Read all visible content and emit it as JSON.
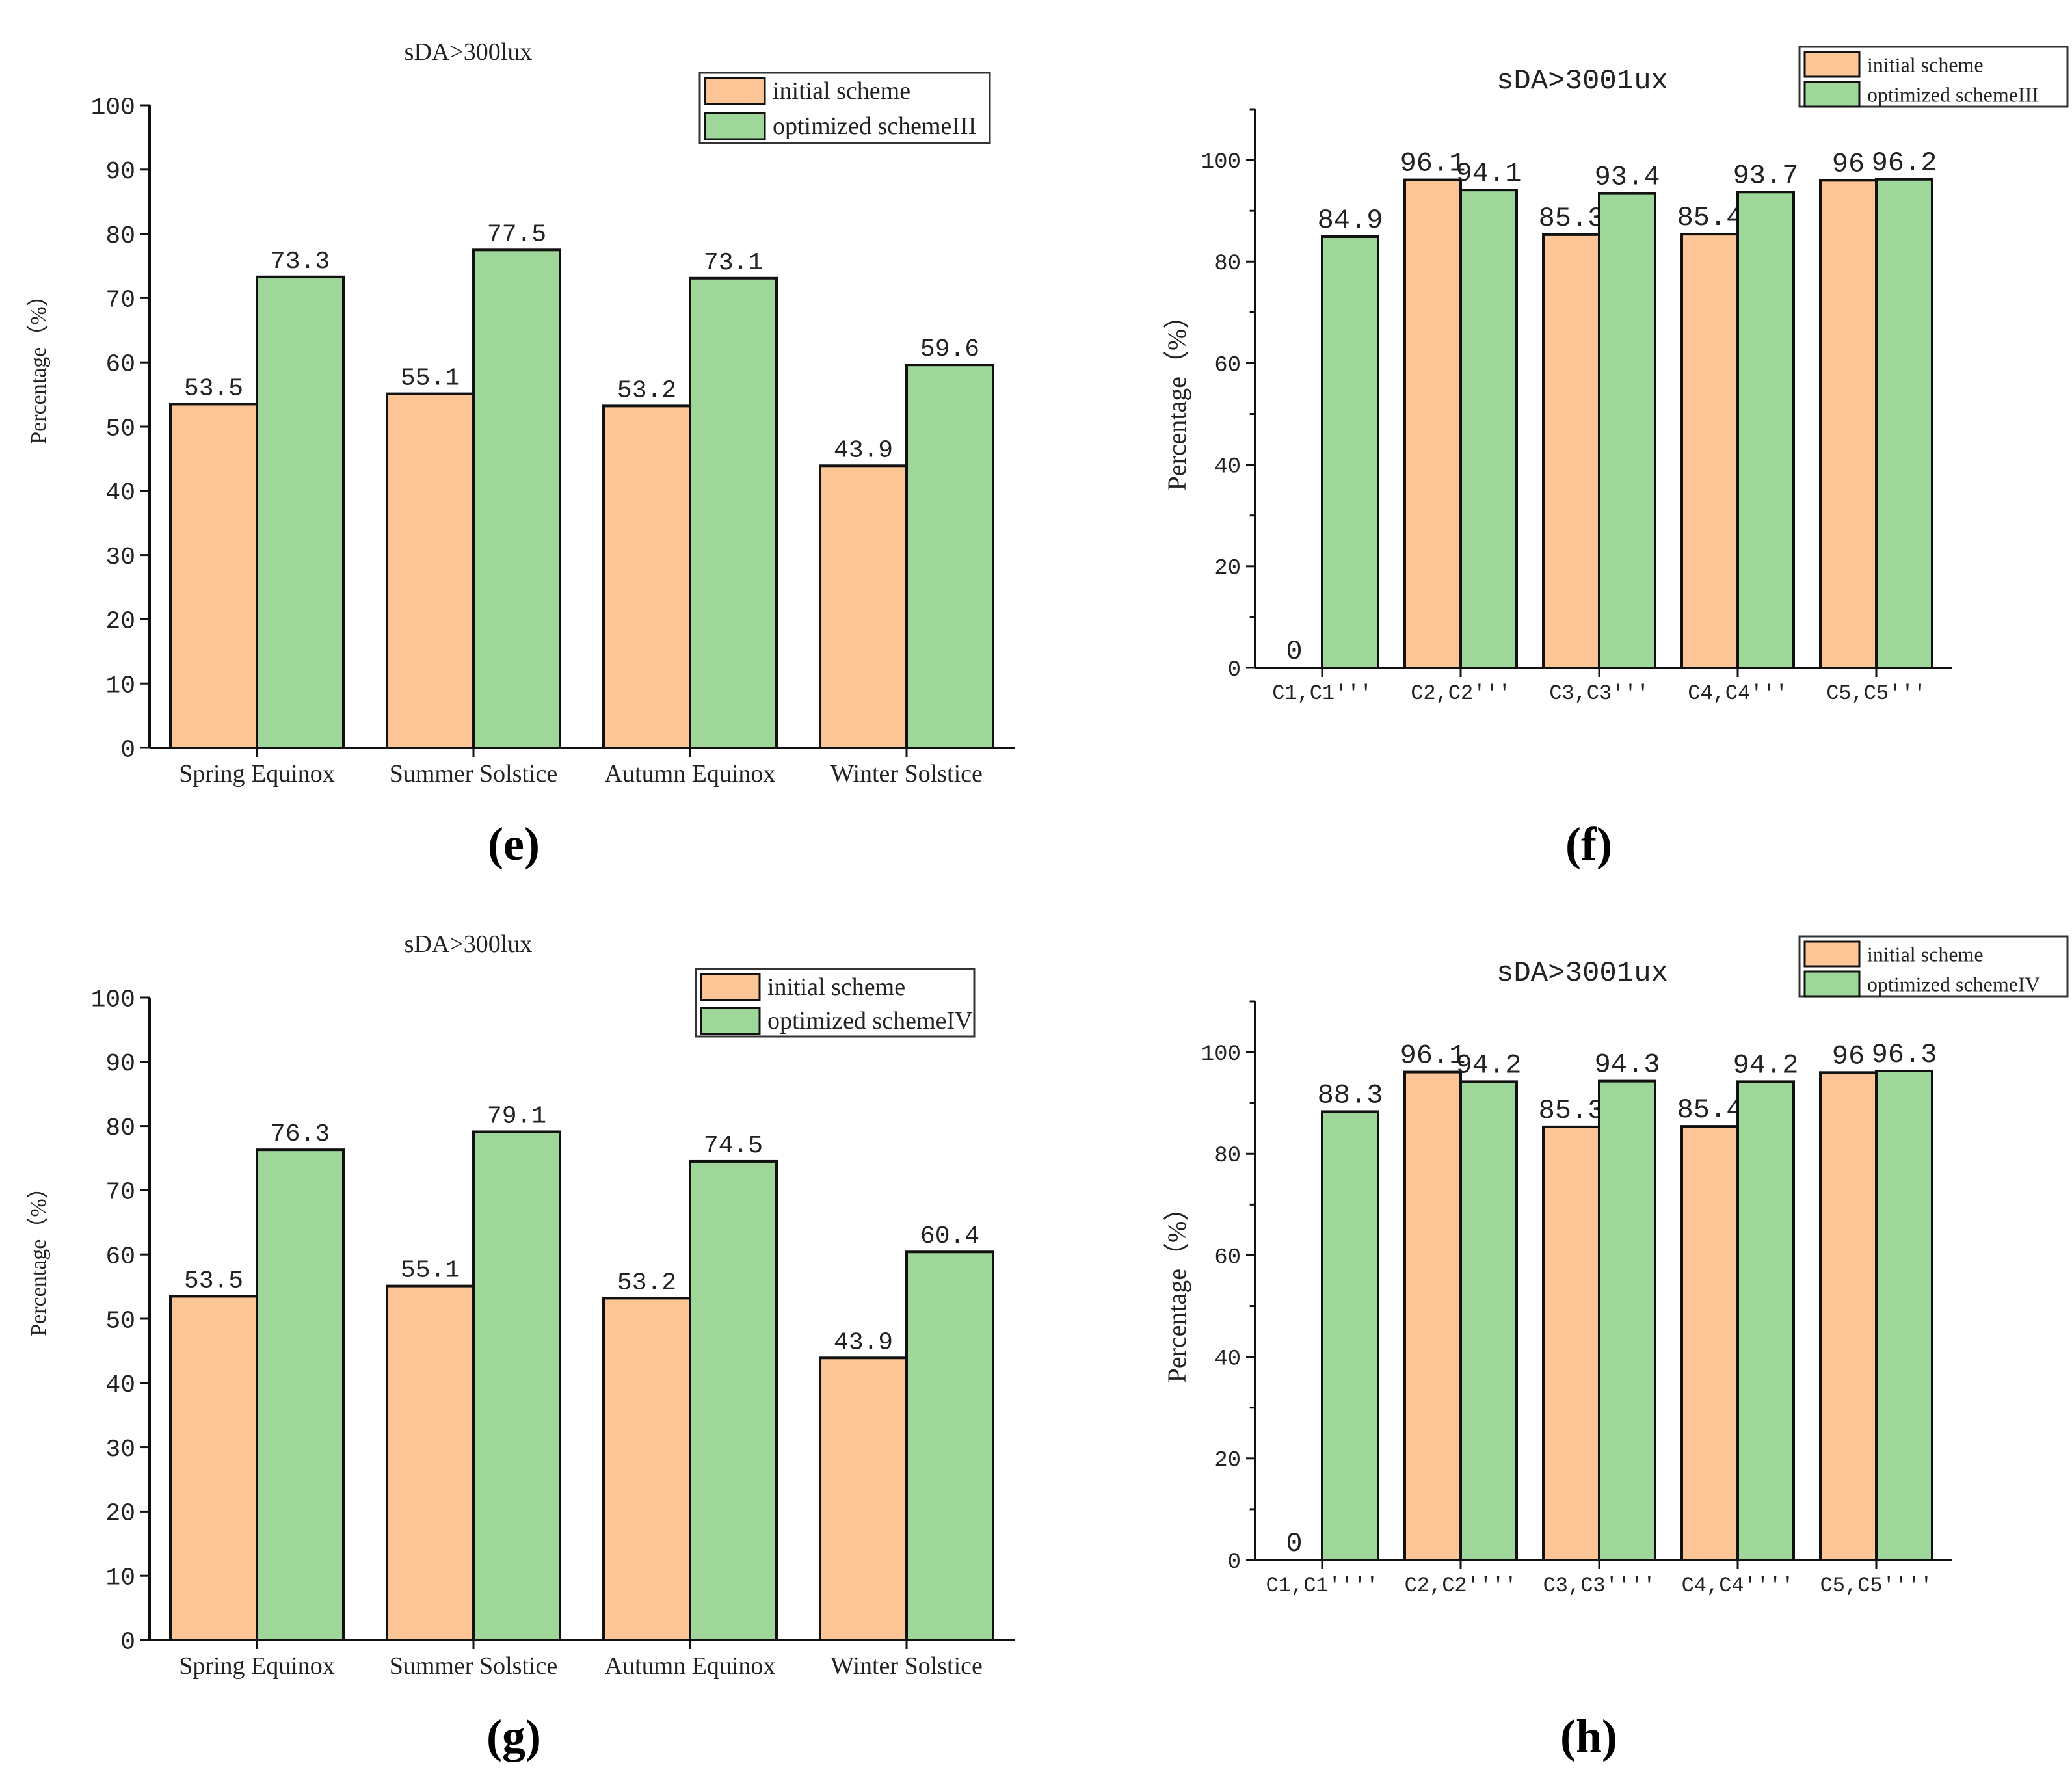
{
  "colors": {
    "initial": "#FBC595",
    "optimized": "#9FD69A"
  },
  "chart_data": [
    {
      "panel": "(e)",
      "type": "bar",
      "title": "sDA>300lux",
      "ylabel": "Percentage（%）",
      "xlabel": "",
      "ylim": [
        0,
        100
      ],
      "ytick_step": 10,
      "minor_ticks": false,
      "categories": [
        "Spring Equinox",
        "Summer Solstice",
        "Autumn Equinox",
        "Winter Solstice"
      ],
      "series": [
        {
          "name": "initial scheme",
          "values": [
            53.5,
            55.1,
            53.2,
            43.9
          ],
          "labels": [
            "53.5",
            "55.1",
            "53.2",
            "43.9"
          ]
        },
        {
          "name": "optimized schemeIII",
          "values": [
            73.3,
            77.5,
            73.1,
            59.6
          ],
          "labels": [
            "73.3",
            "77.5",
            "73.1",
            "59.6"
          ]
        }
      ],
      "legend": "top-right"
    },
    {
      "panel": "(f)",
      "type": "bar",
      "title": "sDA>3001ux",
      "ylabel": "Percentage（%）",
      "xlabel": "",
      "ylim": [
        0,
        110
      ],
      "ytick_step": 20,
      "minor_ticks": true,
      "categories": [
        "C1,C1'''",
        "C2,C2'''",
        "C3,C3'''",
        "C4,C4'''",
        "C5,C5'''"
      ],
      "series": [
        {
          "name": "initial scheme",
          "values": [
            0,
            96.1,
            85.3,
            85.4,
            96
          ],
          "labels": [
            "0",
            "96.1",
            "85.3",
            "85.4",
            "96"
          ]
        },
        {
          "name": "optimized schemeIII",
          "values": [
            84.9,
            94.1,
            93.4,
            93.7,
            96.2
          ],
          "labels": [
            "84.9",
            "94.1",
            "93.4",
            "93.7",
            "96.2"
          ]
        }
      ],
      "legend": "top-right"
    },
    {
      "panel": "(g)",
      "type": "bar",
      "title": "sDA>300lux",
      "ylabel": "Percentage（%）",
      "xlabel": "",
      "ylim": [
        0,
        100
      ],
      "ytick_step": 10,
      "minor_ticks": false,
      "categories": [
        "Spring Equinox",
        "Summer Solstice",
        "Autumn Equinox",
        "Winter Solstice"
      ],
      "series": [
        {
          "name": "initial scheme",
          "values": [
            53.5,
            55.1,
            53.2,
            43.9
          ],
          "labels": [
            "53.5",
            "55.1",
            "53.2",
            "43.9"
          ]
        },
        {
          "name": "optimized schemeIV",
          "values": [
            76.3,
            79.1,
            74.5,
            60.4
          ],
          "labels": [
            "76.3",
            "79.1",
            "74.5",
            "60.4"
          ]
        }
      ],
      "legend": "top-right"
    },
    {
      "panel": "(h)",
      "type": "bar",
      "title": "sDA>3001ux",
      "ylabel": "Percentage（%）",
      "xlabel": "",
      "ylim": [
        0,
        110
      ],
      "ytick_step": 20,
      "minor_ticks": true,
      "categories": [
        "C1,C1''''",
        "C2,C2''''",
        "C3,C3''''",
        "C4,C4''''",
        "C5,C5''''"
      ],
      "series": [
        {
          "name": "initial scheme",
          "values": [
            0,
            96.1,
            85.3,
            85.4,
            96
          ],
          "labels": [
            "0",
            "96.1",
            "85.3",
            "85.4",
            "96"
          ]
        },
        {
          "name": "optimized schemeIV",
          "values": [
            88.3,
            94.2,
            94.3,
            94.2,
            96.3
          ],
          "labels": [
            "88.3",
            "94.2",
            "94.3",
            "94.2",
            "96.3"
          ]
        }
      ],
      "legend": "top-right"
    }
  ]
}
